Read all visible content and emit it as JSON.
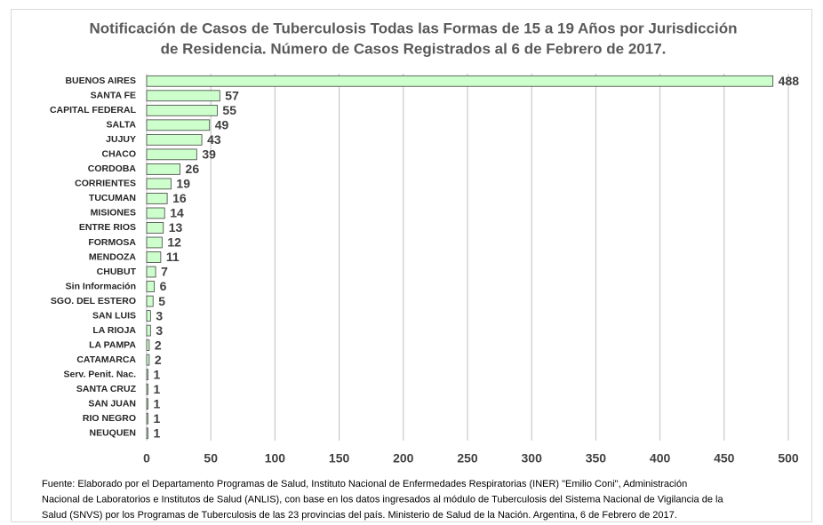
{
  "chart_data": {
    "type": "barh",
    "title": [
      "Notificación de Casos de Tuberculosis Todas las Formas de 15 a 19 Años por Jurisdicción",
      "de Residencia. Número de Casos Registrados al 6 de Febrero de 2017."
    ],
    "categories": [
      "BUENOS AIRES",
      "SANTA FE",
      "CAPITAL FEDERAL",
      "SALTA",
      "JUJUY",
      "CHACO",
      "CORDOBA",
      "CORRIENTES",
      "TUCUMAN",
      "MISIONES",
      "ENTRE RIOS",
      "FORMOSA",
      "MENDOZA",
      "CHUBUT",
      "Sin Información",
      "SGO. DEL ESTERO",
      "SAN LUIS",
      "LA RIOJA",
      "LA PAMPA",
      "CATAMARCA",
      "Serv. Penit. Nac.",
      "SANTA CRUZ",
      "SAN JUAN",
      "RIO NEGRO",
      "NEUQUEN"
    ],
    "values": [
      488,
      57,
      55,
      49,
      43,
      39,
      26,
      19,
      16,
      14,
      13,
      12,
      11,
      7,
      6,
      5,
      3,
      3,
      2,
      2,
      1,
      1,
      1,
      1,
      1
    ],
    "color": "#ccffcc",
    "xlim": [
      0,
      500
    ],
    "xticks": [
      0,
      50,
      100,
      150,
      200,
      250,
      300,
      350,
      400,
      450,
      500
    ],
    "grid": true,
    "footnote": [
      "Fuente: Elaborado por el Departamento Programas de Salud, Instituto Nacional de Enfermedades Respiratorias (INER) \"Emilio Coni\", Administración",
      "Nacional de Laboratorios e Institutos de Salud (ANLIS), con base en los datos ingresados al módulo de Tuberculosis del Sistema Nacional de Vigilancia de la",
      "Salud (SNVS) por los Programas de Tuberculosis de las 23 provincias del país. Ministerio de Salud de la Nación. Argentina,  6 de Febrero de 2017."
    ]
  }
}
